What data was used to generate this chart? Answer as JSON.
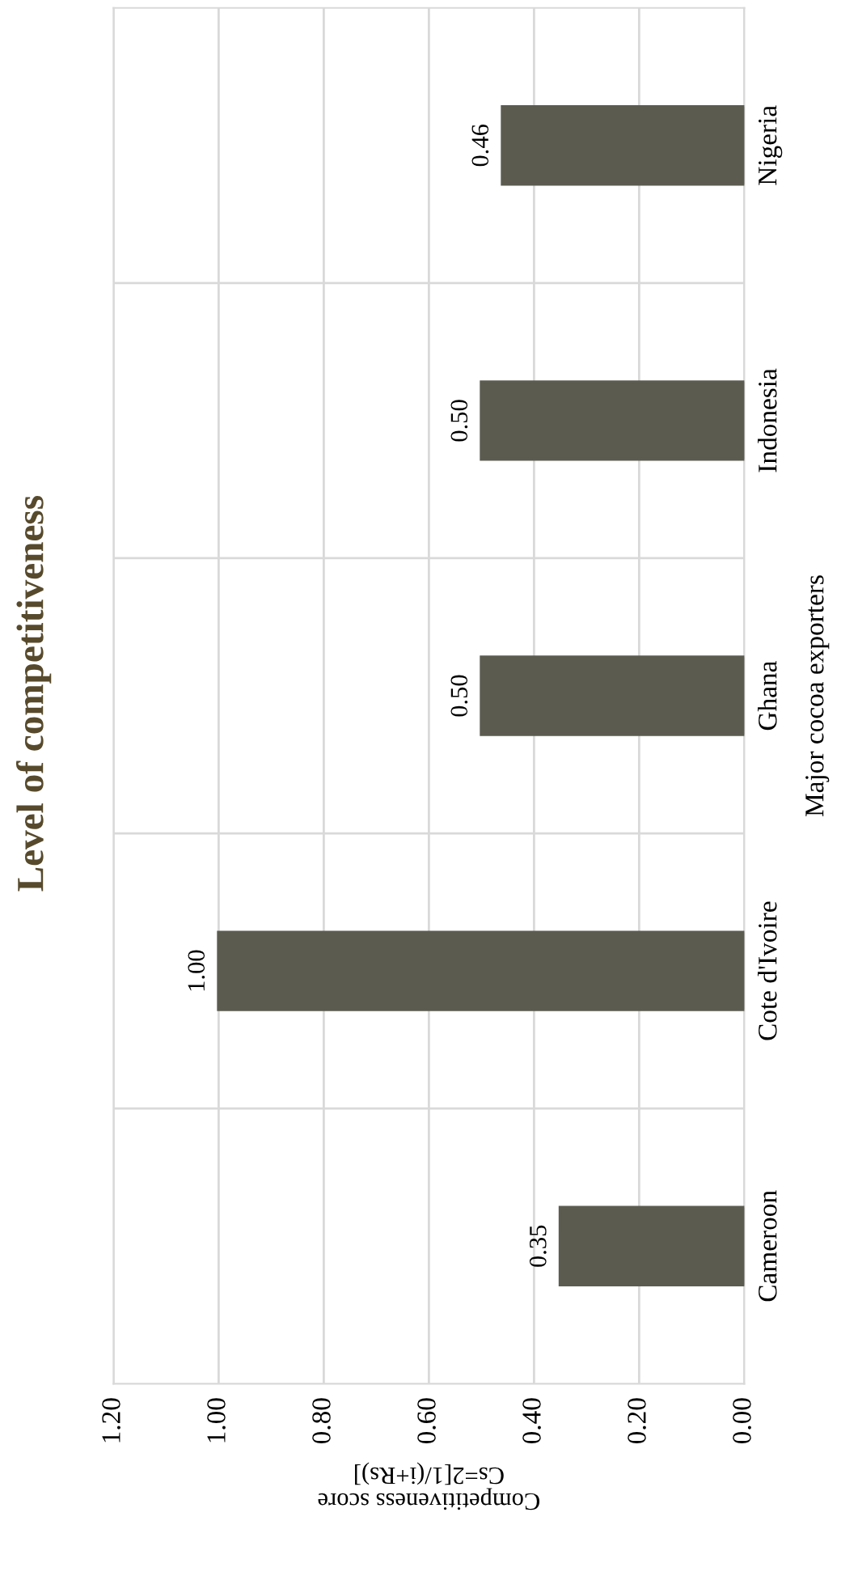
{
  "chart_data": {
    "type": "bar",
    "orientation": "horizontal",
    "title": "Level of competitiveness",
    "xlabel": "Competitiveness score\nCs=2[1/(i+Rs)]",
    "ylabel": "Major cocoa exporters",
    "categories": [
      "Nigeria",
      "Indonesia",
      "Ghana",
      "Cote d'Ivoire",
      "Cameroon"
    ],
    "values": [
      0.46,
      0.5,
      0.5,
      1.0,
      0.35
    ],
    "color": "#5c5b50",
    "value_labels": [
      "0.46",
      "0.50",
      "0.50",
      "1.00",
      "0.35"
    ],
    "xlim": [
      1.2,
      0
    ],
    "xticks": [
      {
        "value": 1.2,
        "label": "1.20"
      },
      {
        "value": 1.0,
        "label": "1.00"
      },
      {
        "value": 0.8,
        "label": "0.80"
      },
      {
        "value": 0.6,
        "label": "0.60"
      },
      {
        "value": 0.4,
        "label": "0.40"
      },
      {
        "value": 0.2,
        "label": "0.20"
      },
      {
        "value": 0,
        "label": "0.00"
      }
    ],
    "grid": true,
    "legend": false
  }
}
